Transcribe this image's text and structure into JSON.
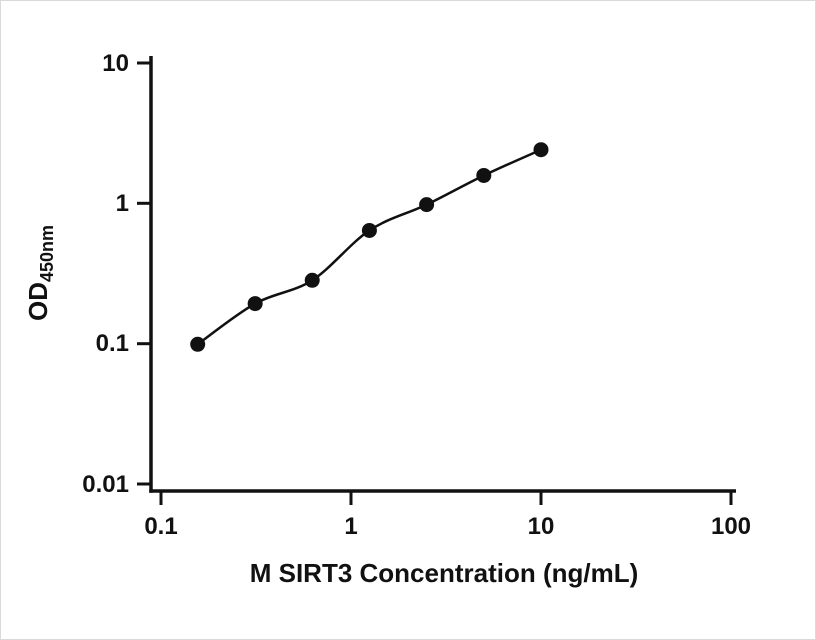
{
  "chart_data": {
    "type": "scatter",
    "curve": "smooth",
    "x": [
      0.156,
      0.313,
      0.625,
      1.25,
      2.5,
      5,
      10
    ],
    "y": [
      0.099,
      0.193,
      0.283,
      0.641,
      0.979,
      1.58,
      2.41
    ],
    "title": "",
    "xlabel": "M SIRT3 Concentration (ng/mL)",
    "ylabel_main": "OD",
    "ylabel_sub": "450nm",
    "xscale": "log",
    "yscale": "log",
    "xlim": [
      0.1,
      100
    ],
    "ylim": [
      0.01,
      10
    ],
    "xticks": [
      "0.1",
      "1",
      "10",
      "100"
    ],
    "yticks": [
      "10",
      "1",
      "0.1",
      "0.01"
    ],
    "grid": "off",
    "legend": "none",
    "marker_color": "#111111",
    "line_color": "#111111",
    "axis_color": "#111111"
  }
}
